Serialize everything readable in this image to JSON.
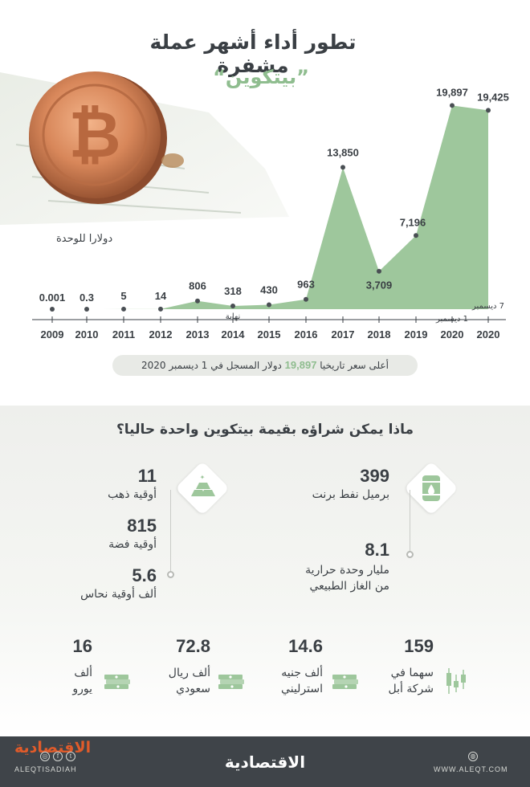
{
  "header": {
    "title": "تطور أداء أشهر عملة مشفرة",
    "subtitle": "”بيتكوين“",
    "unit_label": "دولارا للوحدة"
  },
  "chart_data": {
    "type": "area",
    "title": "تطور أداء أشهر عملة مشفرة",
    "subtitle": "”بيتكوين“",
    "ylabel": "دولارا للوحدة",
    "ylim": [
      0,
      20000
    ],
    "grid": false,
    "x": [
      "2009",
      "2010",
      "2011",
      "2012",
      "2013",
      "2014",
      "2015",
      "2016",
      "2017",
      "2018",
      "2019",
      "2020",
      "2020"
    ],
    "x_notes": [
      "",
      "",
      "",
      "",
      "",
      "نهاية",
      "",
      "",
      "",
      "",
      "",
      "1 ديسمبر",
      "7 ديسمبر"
    ],
    "values": [
      0.001,
      0.3,
      5,
      14,
      806,
      318,
      430,
      963,
      13850,
      3709,
      7196,
      19897,
      19425
    ],
    "value_labels": [
      "0.001",
      "0.3",
      "5",
      "14",
      "806",
      "318",
      "430",
      "963",
      "13,850",
      "3,709",
      "7,196",
      "19,897",
      "19,425"
    ],
    "fill_color": "#9ec79c",
    "line_color": "#8fbd8f"
  },
  "highlight": {
    "before": "أعلى سعر تاريخيا",
    "value": "19,897",
    "after": "دولار المسجل في 1 ديسمبر 2020"
  },
  "purchases": {
    "question": "ماذا يمكن شراؤه بقيمة بيتكوين واحدة حاليا؟",
    "oil": {
      "icon": "oil-barrel-icon",
      "items": [
        {
          "value": "399",
          "label": "برميل نفط برنت"
        },
        {
          "value": "8.1",
          "label_line1": "مليار وحدة حرارية",
          "label_line2": "من الغاز الطبيعي"
        }
      ]
    },
    "metals": {
      "icon": "gold-bars-icon",
      "items": [
        {
          "value": "11",
          "label": "أوقية ذهب"
        },
        {
          "value": "815",
          "label": "أوقية فضة"
        },
        {
          "value": "5.6",
          "label": "ألف أوقية نحاس"
        }
      ]
    },
    "bottom": [
      {
        "value": "159",
        "line1": "سهما في",
        "line2": "شركة أبل",
        "icon": "candlestick-icon"
      },
      {
        "value": "14.6",
        "line1": "ألف جنيه",
        "line2": "استرليني",
        "icon": "money-stack-icon"
      },
      {
        "value": "72.8",
        "line1": "ألف ريال",
        "line2": "سعودي",
        "icon": "money-stack-icon"
      },
      {
        "value": "16",
        "line1": "ألف",
        "line2": "يورو",
        "icon": "money-stack-icon"
      }
    ]
  },
  "footer": {
    "logo_left": "الاقتصادية",
    "handle": "ALEQTISADIAH",
    "logo_center": "الاقتصادية",
    "url": "WWW.ALEQT.COM"
  },
  "colors": {
    "accent_green": "#8fbd8f",
    "footer_bg": "#3f4449",
    "brand_orange": "#e05b2a"
  }
}
